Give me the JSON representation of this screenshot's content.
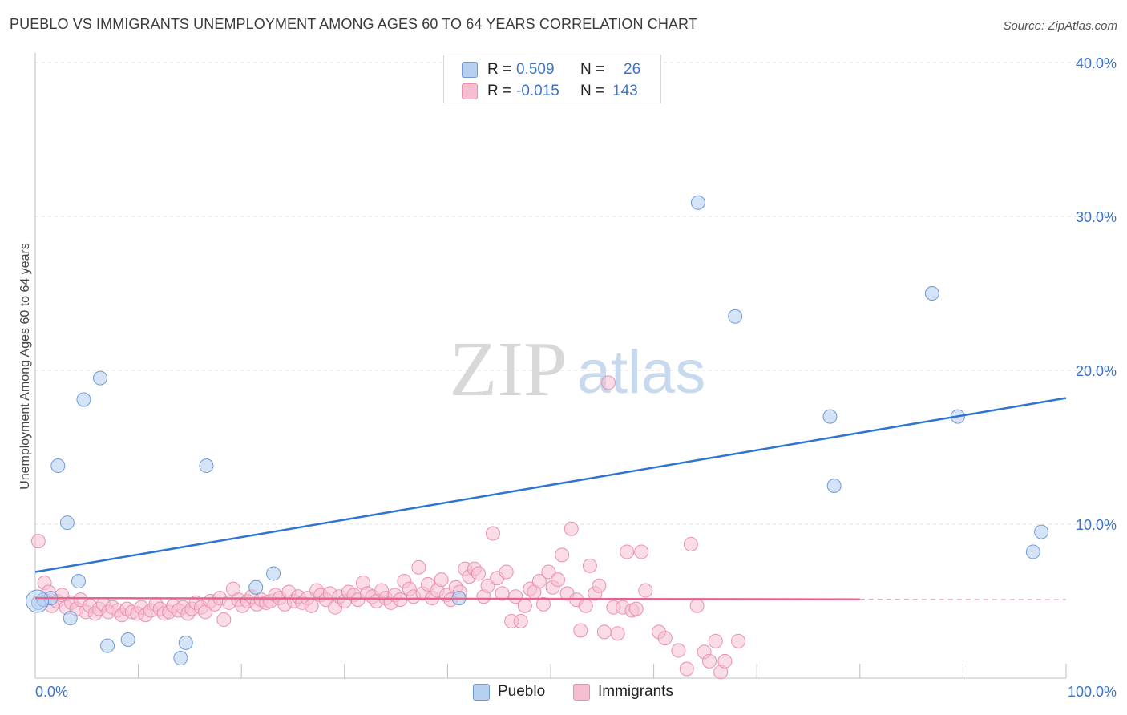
{
  "title": "PUEBLO VS IMMIGRANTS UNEMPLOYMENT AMONG AGES 60 TO 64 YEARS CORRELATION CHART",
  "source": "Source: ZipAtlas.com",
  "watermark": {
    "zip": "ZIP",
    "atlas": "atlas"
  },
  "legend": {
    "rows": [
      {
        "label": "R =",
        "r": "0.509",
        "n_label": "N =",
        "n": "26"
      },
      {
        "label": "R =",
        "r": "-0.015",
        "n_label": "N =",
        "n": "143"
      }
    ],
    "bottom": [
      "Pueblo",
      "Immigrants"
    ]
  },
  "colors": {
    "pueblo_fill": "#b8d0f0",
    "pueblo_stroke": "#6e9bd8",
    "pueblo_line": "#2f74d0",
    "immigrants_fill": "#f6bfd1",
    "immigrants_stroke": "#ea8fb0",
    "immigrants_line": "#e8628e",
    "accent_text": "#3b73c8"
  },
  "chart_data": {
    "type": "scatter",
    "title": "PUEBLO VS IMMIGRANTS UNEMPLOYMENT AMONG AGES 60 TO 64 YEARS CORRELATION CHART",
    "xlabel": "",
    "ylabel": "Unemployment Among Ages 60 to 64 years",
    "xlim": [
      0,
      100
    ],
    "ylim": [
      0,
      40
    ],
    "x_tick_labels": [
      {
        "value": 0,
        "label": "0.0%"
      },
      {
        "value": 100,
        "label": "100.0%"
      }
    ],
    "y_tick_labels": [
      {
        "value": 10,
        "label": "10.0%"
      },
      {
        "value": 20,
        "label": "20.0%"
      },
      {
        "value": 30,
        "label": "30.0%"
      },
      {
        "value": 40,
        "label": "40.0%"
      }
    ],
    "grid": true,
    "series": [
      {
        "name": "Pueblo",
        "r": 0.509,
        "n": 26,
        "trend": {
          "x0": 0,
          "y0": 6.9,
          "x1": 100,
          "y1": 18.2,
          "solid_until": 100
        },
        "points": [
          [
            0.3,
            4.9
          ],
          [
            0.8,
            5.1
          ],
          [
            1.5,
            5.2
          ],
          [
            2.2,
            13.8
          ],
          [
            3.1,
            10.1
          ],
          [
            3.4,
            3.9
          ],
          [
            4.2,
            6.3
          ],
          [
            4.7,
            18.1
          ],
          [
            7.0,
            2.1
          ],
          [
            6.3,
            19.5
          ],
          [
            9.0,
            2.5
          ],
          [
            14.1,
            1.3
          ],
          [
            14.6,
            2.3
          ],
          [
            16.6,
            13.8
          ],
          [
            21.4,
            5.9
          ],
          [
            23.1,
            6.8
          ],
          [
            41.1,
            5.2
          ],
          [
            64.3,
            30.9
          ],
          [
            67.9,
            23.5
          ],
          [
            77.1,
            17.0
          ],
          [
            77.5,
            12.5
          ],
          [
            87.0,
            25.0
          ],
          [
            89.5,
            17.0
          ],
          [
            96.8,
            8.2
          ],
          [
            97.6,
            9.5
          ],
          [
            0.2,
            5.0
          ]
        ]
      },
      {
        "name": "Immigrants",
        "r": -0.015,
        "n": 143,
        "trend": {
          "x0": 0,
          "y0": 5.2,
          "x1": 100,
          "y1": 5.1,
          "solid_until": 80
        },
        "points": [
          [
            0.3,
            8.9
          ],
          [
            0.9,
            6.2
          ],
          [
            1.3,
            5.6
          ],
          [
            1.6,
            4.7
          ],
          [
            2.1,
            5.0
          ],
          [
            2.6,
            5.4
          ],
          [
            3.0,
            4.6
          ],
          [
            3.5,
            4.9
          ],
          [
            4.0,
            4.5
          ],
          [
            4.4,
            5.1
          ],
          [
            4.9,
            4.3
          ],
          [
            5.3,
            4.7
          ],
          [
            5.8,
            4.2
          ],
          [
            6.2,
            4.5
          ],
          [
            6.6,
            4.8
          ],
          [
            7.1,
            4.3
          ],
          [
            7.5,
            4.6
          ],
          [
            8.0,
            4.4
          ],
          [
            8.4,
            4.1
          ],
          [
            8.9,
            4.5
          ],
          [
            9.4,
            4.3
          ],
          [
            9.9,
            4.2
          ],
          [
            10.3,
            4.6
          ],
          [
            10.7,
            4.1
          ],
          [
            11.2,
            4.4
          ],
          [
            11.7,
            4.8
          ],
          [
            12.1,
            4.5
          ],
          [
            12.5,
            4.2
          ],
          [
            13.0,
            4.3
          ],
          [
            13.4,
            4.7
          ],
          [
            13.9,
            4.4
          ],
          [
            14.3,
            4.6
          ],
          [
            14.8,
            4.2
          ],
          [
            15.2,
            4.5
          ],
          [
            15.6,
            4.9
          ],
          [
            16.1,
            4.6
          ],
          [
            16.5,
            4.3
          ],
          [
            17.0,
            5.0
          ],
          [
            17.4,
            4.8
          ],
          [
            17.9,
            5.2
          ],
          [
            18.3,
            3.8
          ],
          [
            18.8,
            4.9
          ],
          [
            19.2,
            5.8
          ],
          [
            19.7,
            5.1
          ],
          [
            20.1,
            4.7
          ],
          [
            20.6,
            5.0
          ],
          [
            21.0,
            5.3
          ],
          [
            21.5,
            4.8
          ],
          [
            21.9,
            5.1
          ],
          [
            22.4,
            4.9
          ],
          [
            22.8,
            5.0
          ],
          [
            23.3,
            5.4
          ],
          [
            23.7,
            5.2
          ],
          [
            24.2,
            4.8
          ],
          [
            24.6,
            5.6
          ],
          [
            25.1,
            5.0
          ],
          [
            25.5,
            5.3
          ],
          [
            25.9,
            4.9
          ],
          [
            26.4,
            5.2
          ],
          [
            26.8,
            4.7
          ],
          [
            27.3,
            5.7
          ],
          [
            27.7,
            5.4
          ],
          [
            28.2,
            5.1
          ],
          [
            28.6,
            5.5
          ],
          [
            29.1,
            4.6
          ],
          [
            29.5,
            5.3
          ],
          [
            30.0,
            5.0
          ],
          [
            30.4,
            5.6
          ],
          [
            30.9,
            5.4
          ],
          [
            31.3,
            5.1
          ],
          [
            31.8,
            6.2
          ],
          [
            32.2,
            5.5
          ],
          [
            32.7,
            5.3
          ],
          [
            33.1,
            5.0
          ],
          [
            33.6,
            5.7
          ],
          [
            34.0,
            5.2
          ],
          [
            34.5,
            4.9
          ],
          [
            34.9,
            5.4
          ],
          [
            35.4,
            5.1
          ],
          [
            35.8,
            6.3
          ],
          [
            36.3,
            5.8
          ],
          [
            36.7,
            5.3
          ],
          [
            37.2,
            7.2
          ],
          [
            37.6,
            5.5
          ],
          [
            38.1,
            6.1
          ],
          [
            38.5,
            5.2
          ],
          [
            39.0,
            5.7
          ],
          [
            39.4,
            6.4
          ],
          [
            39.9,
            5.4
          ],
          [
            40.3,
            5.1
          ],
          [
            40.8,
            5.9
          ],
          [
            41.2,
            5.6
          ],
          [
            41.7,
            7.1
          ],
          [
            42.1,
            6.6
          ],
          [
            42.6,
            7.1
          ],
          [
            43.0,
            6.8
          ],
          [
            43.5,
            5.3
          ],
          [
            43.9,
            6.0
          ],
          [
            44.4,
            9.4
          ],
          [
            44.8,
            6.5
          ],
          [
            45.3,
            5.5
          ],
          [
            45.7,
            6.9
          ],
          [
            46.2,
            3.7
          ],
          [
            46.6,
            5.3
          ],
          [
            47.1,
            3.7
          ],
          [
            47.5,
            4.7
          ],
          [
            48.0,
            5.8
          ],
          [
            48.4,
            5.6
          ],
          [
            48.9,
            6.3
          ],
          [
            49.3,
            4.8
          ],
          [
            49.8,
            6.9
          ],
          [
            50.2,
            5.9
          ],
          [
            50.7,
            6.4
          ],
          [
            51.1,
            8.0
          ],
          [
            51.6,
            5.5
          ],
          [
            52.0,
            9.7
          ],
          [
            52.5,
            5.1
          ],
          [
            52.9,
            3.1
          ],
          [
            53.4,
            4.7
          ],
          [
            53.8,
            7.3
          ],
          [
            54.3,
            5.5
          ],
          [
            54.7,
            6.0
          ],
          [
            55.2,
            3.0
          ],
          [
            55.6,
            19.2
          ],
          [
            56.1,
            4.6
          ],
          [
            56.5,
            2.9
          ],
          [
            57.0,
            4.6
          ],
          [
            57.4,
            8.2
          ],
          [
            57.9,
            4.4
          ],
          [
            58.3,
            4.5
          ],
          [
            58.8,
            8.2
          ],
          [
            59.2,
            5.7
          ],
          [
            60.5,
            3.0
          ],
          [
            61.1,
            2.6
          ],
          [
            62.4,
            1.8
          ],
          [
            63.2,
            0.6
          ],
          [
            63.6,
            8.7
          ],
          [
            64.2,
            4.7
          ],
          [
            64.9,
            1.7
          ],
          [
            65.4,
            1.1
          ],
          [
            66.0,
            2.4
          ],
          [
            66.5,
            0.4
          ],
          [
            66.9,
            1.1
          ],
          [
            68.2,
            2.4
          ]
        ]
      }
    ]
  }
}
